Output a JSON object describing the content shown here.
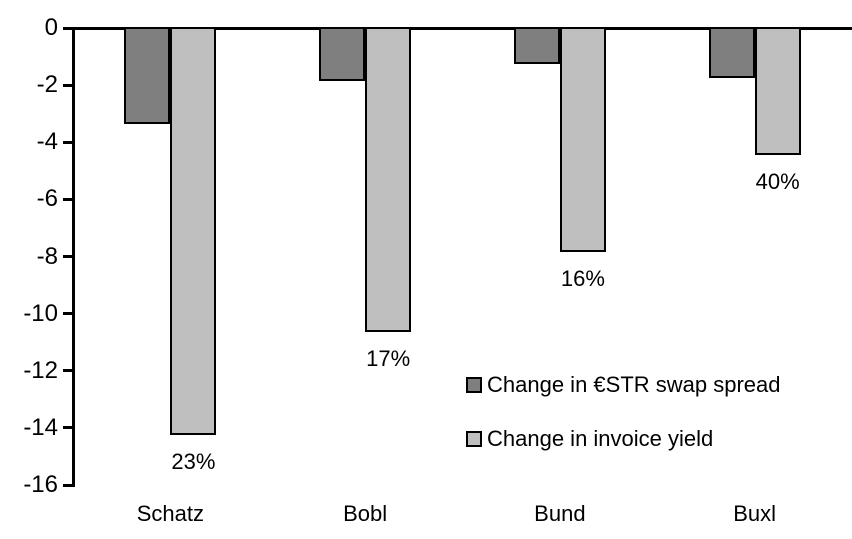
{
  "chart_data": {
    "type": "bar",
    "title": "",
    "categories": [
      "Schatz",
      "Bobl",
      "Bund",
      "Buxl"
    ],
    "series": [
      {
        "name": "Change in €STR swap spread",
        "color": "#7f7f7f",
        "values": [
          -3.3,
          -1.8,
          -1.2,
          -1.7
        ]
      },
      {
        "name": "Change in invoice yield",
        "color": "#bfbfbf",
        "values": [
          -14.2,
          -10.6,
          -7.8,
          -4.4
        ]
      }
    ],
    "bar_labels": {
      "series": "Change in invoice yield",
      "values": [
        "23%",
        "17%",
        "16%",
        "40%"
      ]
    },
    "xlabel": "",
    "ylabel": "",
    "ylim": [
      -16,
      0
    ],
    "yticks": [
      0,
      -2,
      -4,
      -6,
      -8,
      -10,
      -12,
      -14,
      -16
    ],
    "grid": false,
    "legend_position": "inside-center-right",
    "axis_color": "#000000",
    "background_color": "#ffffff",
    "bar_outline_color": "#000000"
  }
}
